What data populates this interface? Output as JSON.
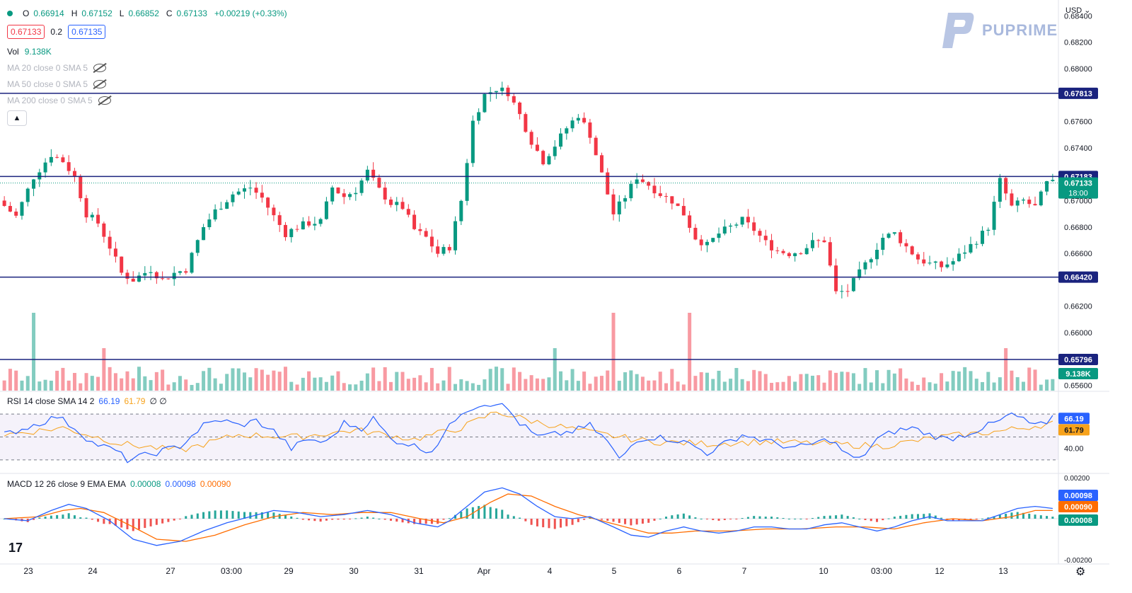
{
  "header": {
    "ohlc": [
      {
        "label": "O",
        "value": "0.66914"
      },
      {
        "label": "H",
        "value": "0.67152"
      },
      {
        "label": "L",
        "value": "0.66852"
      },
      {
        "label": "C",
        "value": "0.67133"
      }
    ],
    "change": "+0.00219 (+0.33%)",
    "sell_price": "0.67133",
    "spread": "0.2",
    "buy_price": "0.67135",
    "volume_label": "Vol",
    "volume_value": "9.138K",
    "ma_lines": [
      "MA 20 close 0 SMA 5",
      "MA 50 close 0 SMA 5",
      "MA 200 close 0 SMA 5"
    ],
    "collapse_icon": "chevron-up-icon"
  },
  "brand": {
    "name": "PUPRIME",
    "color": "#a9b9dd"
  },
  "currency_label": "USD",
  "currency_icon": "chevron-down-icon",
  "rsi": {
    "label": "RSI 14 close SMA 14 2",
    "value": "66.19",
    "sma": "61.79",
    "extra": "∅ ∅",
    "level": "40.00"
  },
  "macd": {
    "label": "MACD 12 26 close 9 EMA EMA",
    "hist": "0.00008",
    "macd": "0.00098",
    "signal": "0.00090",
    "top_tick": "0.00200",
    "bottom_tick": "-0.00200"
  },
  "colors": {
    "up": "#089981",
    "down": "#f23645",
    "hline": "#1a237e",
    "rsi": "#2962ff",
    "rsi_sma": "#f7a21b",
    "macd": "#2962ff",
    "signal": "#ff6d00"
  },
  "chart_data": {
    "type": "candlestick",
    "price_axis": {
      "ticks": [
        0.684,
        0.682,
        0.68,
        0.676,
        0.674,
        0.67,
        0.668,
        0.666,
        0.662,
        0.66,
        0.656
      ],
      "tick_labels": [
        "0.68400",
        "0.68200",
        "0.68000",
        "0.67600",
        "0.67400",
        "0.67000",
        "0.66800",
        "0.66600",
        "0.66200",
        "0.66000",
        "0.65600"
      ],
      "range": [
        0.6556,
        0.6852
      ]
    },
    "horizontal_levels": [
      {
        "value": 0.67813,
        "label": "0.67813"
      },
      {
        "value": 0.67183,
        "label": "0.67183"
      },
      {
        "value": 0.6642,
        "label": "0.66420"
      },
      {
        "value": 0.65796,
        "label": "0.65796"
      }
    ],
    "last_price": {
      "value": 0.67133,
      "label": "0.67133",
      "countdown": "18:00"
    },
    "volume_badge": "9.138K",
    "x_labels": [
      "23",
      "24",
      "27",
      "03:00",
      "29",
      "30",
      "31",
      "Apr",
      "4",
      "5",
      "6",
      "7",
      "10",
      "03:00",
      "12",
      "13"
    ],
    "price_path": [
      [
        0,
        0.67
      ],
      [
        3,
        0.6688
      ],
      [
        6,
        0.6718
      ],
      [
        9,
        0.6735
      ],
      [
        11,
        0.673
      ],
      [
        13,
        0.6718
      ],
      [
        15,
        0.669
      ],
      [
        17,
        0.6683
      ],
      [
        19,
        0.6665
      ],
      [
        21,
        0.6645
      ],
      [
        23,
        0.664
      ],
      [
        26,
        0.6648
      ],
      [
        28,
        0.664
      ],
      [
        30,
        0.6645
      ],
      [
        32,
        0.6648
      ],
      [
        35,
        0.668
      ],
      [
        37,
        0.6692
      ],
      [
        40,
        0.6705
      ],
      [
        43,
        0.671
      ],
      [
        45,
        0.6702
      ],
      [
        47,
        0.6688
      ],
      [
        49,
        0.6675
      ],
      [
        51,
        0.668
      ],
      [
        53,
        0.6683
      ],
      [
        55,
        0.6684
      ],
      [
        57,
        0.671
      ],
      [
        59,
        0.6703
      ],
      [
        61,
        0.6708
      ],
      [
        63,
        0.6722
      ],
      [
        65,
        0.6708
      ],
      [
        67,
        0.6698
      ],
      [
        69,
        0.6695
      ],
      [
        71,
        0.6678
      ],
      [
        73,
        0.6672
      ],
      [
        75,
        0.666
      ],
      [
        77,
        0.6665
      ],
      [
        79,
        0.67
      ],
      [
        81,
        0.676
      ],
      [
        83,
        0.678
      ],
      [
        85,
        0.6785
      ],
      [
        87,
        0.6782
      ],
      [
        89,
        0.6765
      ],
      [
        91,
        0.6745
      ],
      [
        93,
        0.673
      ],
      [
        95,
        0.6742
      ],
      [
        97,
        0.6755
      ],
      [
        99,
        0.6765
      ],
      [
        101,
        0.675
      ],
      [
        103,
        0.672
      ],
      [
        105,
        0.669
      ],
      [
        107,
        0.6703
      ],
      [
        109,
        0.6718
      ],
      [
        111,
        0.6712
      ],
      [
        113,
        0.6705
      ],
      [
        115,
        0.67
      ],
      [
        117,
        0.669
      ],
      [
        119,
        0.6672
      ],
      [
        121,
        0.6666
      ],
      [
        123,
        0.6675
      ],
      [
        125,
        0.668
      ],
      [
        127,
        0.6685
      ],
      [
        129,
        0.6678
      ],
      [
        131,
        0.6668
      ],
      [
        133,
        0.6662
      ],
      [
        135,
        0.666
      ],
      [
        137,
        0.6662
      ],
      [
        139,
        0.6668
      ],
      [
        141,
        0.667
      ],
      [
        143,
        0.663
      ],
      [
        145,
        0.6632
      ],
      [
        147,
        0.6645
      ],
      [
        149,
        0.6658
      ],
      [
        151,
        0.6672
      ],
      [
        153,
        0.6675
      ],
      [
        155,
        0.6665
      ],
      [
        157,
        0.6656
      ],
      [
        159,
        0.6652
      ],
      [
        161,
        0.665
      ],
      [
        163,
        0.6654
      ],
      [
        165,
        0.6662
      ],
      [
        167,
        0.667
      ],
      [
        169,
        0.668
      ],
      [
        171,
        0.6715
      ],
      [
        173,
        0.6695
      ],
      [
        175,
        0.67
      ],
      [
        177,
        0.6695
      ],
      [
        179,
        0.6713
      ]
    ],
    "rsi_path": [
      [
        0,
        52
      ],
      [
        6,
        62
      ],
      [
        9,
        68
      ],
      [
        12,
        58
      ],
      [
        15,
        45
      ],
      [
        19,
        38
      ],
      [
        21,
        30
      ],
      [
        25,
        35
      ],
      [
        30,
        42
      ],
      [
        34,
        60
      ],
      [
        37,
        65
      ],
      [
        40,
        60
      ],
      [
        43,
        64
      ],
      [
        46,
        55
      ],
      [
        49,
        40
      ],
      [
        52,
        48
      ],
      [
        55,
        45
      ],
      [
        58,
        62
      ],
      [
        61,
        58
      ],
      [
        63,
        66
      ],
      [
        66,
        48
      ],
      [
        69,
        44
      ],
      [
        71,
        40
      ],
      [
        73,
        38
      ],
      [
        75,
        52
      ],
      [
        78,
        72
      ],
      [
        81,
        78
      ],
      [
        84,
        80
      ],
      [
        86,
        74
      ],
      [
        88,
        62
      ],
      [
        91,
        50
      ],
      [
        94,
        52
      ],
      [
        97,
        55
      ],
      [
        100,
        60
      ],
      [
        103,
        46
      ],
      [
        105,
        30
      ],
      [
        108,
        48
      ],
      [
        111,
        50
      ],
      [
        114,
        48
      ],
      [
        117,
        44
      ],
      [
        120,
        36
      ],
      [
        123,
        44
      ],
      [
        126,
        52
      ],
      [
        129,
        48
      ],
      [
        132,
        44
      ],
      [
        135,
        40
      ],
      [
        138,
        44
      ],
      [
        141,
        48
      ],
      [
        144,
        34
      ],
      [
        146,
        30
      ],
      [
        149,
        48
      ],
      [
        152,
        55
      ],
      [
        155,
        58
      ],
      [
        158,
        52
      ],
      [
        161,
        48
      ],
      [
        164,
        52
      ],
      [
        167,
        58
      ],
      [
        170,
        64
      ],
      [
        172,
        70
      ],
      [
        175,
        62
      ],
      [
        178,
        60
      ],
      [
        179,
        66
      ]
    ],
    "rsi_sma_path": [
      [
        0,
        52
      ],
      [
        10,
        58
      ],
      [
        20,
        44
      ],
      [
        30,
        38
      ],
      [
        40,
        52
      ],
      [
        50,
        50
      ],
      [
        60,
        56
      ],
      [
        70,
        48
      ],
      [
        78,
        58
      ],
      [
        84,
        72
      ],
      [
        90,
        64
      ],
      [
        100,
        54
      ],
      [
        110,
        46
      ],
      [
        120,
        44
      ],
      [
        130,
        46
      ],
      [
        140,
        44
      ],
      [
        150,
        42
      ],
      [
        160,
        50
      ],
      [
        170,
        55
      ],
      [
        179,
        62
      ]
    ],
    "macd_path": [
      [
        0,
        -0.0
      ],
      [
        4,
        -0.0001
      ],
      [
        8,
        0.0004
      ],
      [
        11,
        0.0007
      ],
      [
        14,
        0.0005
      ],
      [
        18,
        -0.0001
      ],
      [
        22,
        -0.001
      ],
      [
        26,
        -0.0013
      ],
      [
        30,
        -0.0011
      ],
      [
        34,
        -0.0006
      ],
      [
        38,
        -0.0002
      ],
      [
        42,
        0.0001
      ],
      [
        46,
        0.0004
      ],
      [
        50,
        0.0003
      ],
      [
        54,
        0.0001
      ],
      [
        58,
        0.0002
      ],
      [
        62,
        0.0004
      ],
      [
        66,
        0.0002
      ],
      [
        70,
        -0.0002
      ],
      [
        74,
        -0.0004
      ],
      [
        76,
        -0.0001
      ],
      [
        79,
        0.0006
      ],
      [
        82,
        0.0013
      ],
      [
        85,
        0.0015
      ],
      [
        88,
        0.0012
      ],
      [
        91,
        0.0006
      ],
      [
        94,
        0.0001
      ],
      [
        97,
        -0.0
      ],
      [
        100,
        0.0001
      ],
      [
        104,
        -0.0004
      ],
      [
        107,
        -0.0008
      ],
      [
        110,
        -0.0009
      ],
      [
        113,
        -0.0006
      ],
      [
        116,
        -0.0004
      ],
      [
        119,
        -0.0006
      ],
      [
        122,
        -0.0007
      ],
      [
        125,
        -0.0006
      ],
      [
        128,
        -0.0004
      ],
      [
        131,
        -0.0004
      ],
      [
        134,
        -0.0005
      ],
      [
        137,
        -0.0005
      ],
      [
        140,
        -0.0003
      ],
      [
        143,
        -0.0002
      ],
      [
        146,
        -0.0004
      ],
      [
        149,
        -0.0006
      ],
      [
        152,
        -0.0004
      ],
      [
        155,
        -0.0001
      ],
      [
        158,
        0.0001
      ],
      [
        161,
        -0.0001
      ],
      [
        164,
        -0.0001
      ],
      [
        167,
        -0.0001
      ],
      [
        170,
        0.0002
      ],
      [
        173,
        0.0005
      ],
      [
        176,
        0.0006
      ],
      [
        179,
        0.0005
      ]
    ],
    "signal_path": [
      [
        0,
        0.0
      ],
      [
        6,
        0.0001
      ],
      [
        10,
        0.0004
      ],
      [
        13,
        0.0005
      ],
      [
        17,
        0.0003
      ],
      [
        22,
        -0.0004
      ],
      [
        26,
        -0.001
      ],
      [
        31,
        -0.0011
      ],
      [
        36,
        -0.0008
      ],
      [
        41,
        -0.0003
      ],
      [
        46,
        0.0001
      ],
      [
        51,
        0.0003
      ],
      [
        56,
        0.0002
      ],
      [
        61,
        0.0003
      ],
      [
        66,
        0.0003
      ],
      [
        71,
        0.0
      ],
      [
        75,
        -0.0002
      ],
      [
        79,
        0.0001
      ],
      [
        83,
        0.0008
      ],
      [
        86,
        0.0012
      ],
      [
        90,
        0.0011
      ],
      [
        94,
        0.0006
      ],
      [
        98,
        0.0002
      ],
      [
        102,
        -0.0001
      ],
      [
        106,
        -0.0004
      ],
      [
        110,
        -0.0007
      ],
      [
        114,
        -0.0007
      ],
      [
        118,
        -0.0006
      ],
      [
        124,
        -0.0006
      ],
      [
        130,
        -0.0005
      ],
      [
        136,
        -0.0005
      ],
      [
        142,
        -0.0004
      ],
      [
        147,
        -0.0004
      ],
      [
        152,
        -0.0005
      ],
      [
        157,
        -0.0002
      ],
      [
        162,
        0.0
      ],
      [
        167,
        -0.0001
      ],
      [
        172,
        0.0001
      ],
      [
        176,
        0.0004
      ],
      [
        179,
        0.0004
      ]
    ]
  }
}
